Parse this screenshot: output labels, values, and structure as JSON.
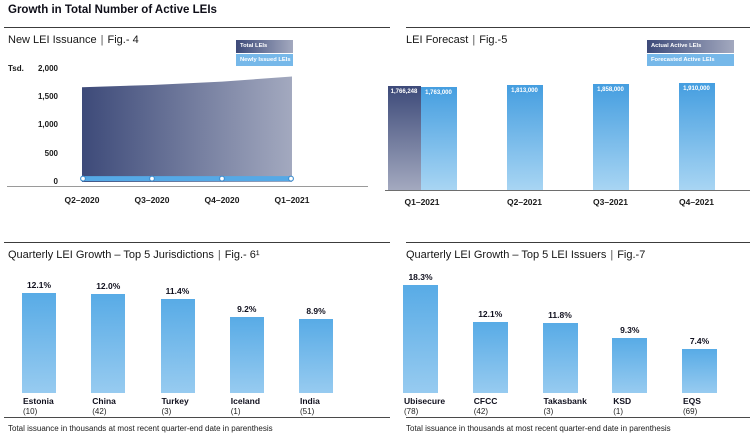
{
  "page_title": "Growth in Total Number of Active LEIs",
  "separator": "|",
  "colors": {
    "dark_gradient_start": "#3d4a79",
    "dark_gradient_end": "#a3a9bf",
    "light_blue_legend": "#76b8e9",
    "light_bar_top": "#459ee0",
    "light_bar_bottom": "#a8d5f3",
    "growth_bar_top": "#58abe6",
    "growth_bar_bottom": "#97cbf0",
    "line_blue": "#55a9e6",
    "marker_stroke": "#3f8fd0",
    "axis_gray": "#9a9a9a",
    "baseline_gray": "#6e6e6e",
    "text_dark": "#1a1a1a"
  },
  "chart_data": [
    {
      "id": "fig4",
      "title": "New LEI Issuance",
      "fig_label": "Fig.- 4",
      "type": "area",
      "legend": [
        {
          "label": "Total LEIs",
          "style": "dark"
        },
        {
          "label": "Newly Issued LEIs",
          "style": "light"
        }
      ],
      "y_axis": {
        "unit": "Tsd.",
        "ticks": [
          "2,000",
          "1,500",
          "1,000",
          "500",
          "0"
        ],
        "min": 0,
        "max": 2000
      },
      "categories": [
        "Q2–2020",
        "Q3–2020",
        "Q4–2020",
        "Q1–2021"
      ],
      "series": [
        {
          "name": "Total LEIs",
          "values": [
            1680,
            1720,
            1780,
            1870
          ]
        },
        {
          "name": "Newly Issued LEIs",
          "values": [
            60,
            60,
            60,
            60
          ]
        }
      ]
    },
    {
      "id": "fig5",
      "title": "LEI Forecast",
      "fig_label": "Fig.-5",
      "type": "bar",
      "legend": [
        {
          "label": "Actual Active LEIs",
          "style": "dark"
        },
        {
          "label": "Forecasted Active LEIs",
          "style": "light"
        }
      ],
      "categories": [
        "Q1–2021",
        "Q2–2021",
        "Q3–2021",
        "Q4–2021"
      ],
      "series": [
        {
          "name": "Actual Active LEIs",
          "values": [
            1766248,
            null,
            null,
            null
          ],
          "labels": [
            "1,766,248",
            null,
            null,
            null
          ]
        },
        {
          "name": "Forecasted Active LEIs",
          "values": [
            1763000,
            1813000,
            1858000,
            1910000
          ],
          "labels": [
            "1,763,000",
            "1,813,000",
            "1,858,000",
            "1,910,000"
          ]
        }
      ]
    },
    {
      "id": "fig6",
      "title": "Quarterly LEI Growth – Top 5 Jurisdictions",
      "fig_label": "Fig.- 6¹",
      "type": "bar",
      "categories": [
        "Estonia",
        "China",
        "Turkey",
        "Iceland",
        "India"
      ],
      "counts": [
        "(10)",
        "(42)",
        "(3)",
        "(1)",
        "(51)"
      ],
      "values": [
        12.1,
        12.0,
        11.4,
        9.2,
        8.9
      ],
      "labels": [
        "12.1%",
        "12.0%",
        "11.4%",
        "9.2%",
        "8.9%"
      ],
      "footnote": "Total issuance in thousands at most recent quarter-end date in parenthesis"
    },
    {
      "id": "fig7",
      "title": "Quarterly LEI Growth – Top 5 LEI Issuers",
      "fig_label": "Fig.-7",
      "type": "bar",
      "categories": [
        "Ubisecure",
        "CFCC",
        "Takasbank",
        "KSD",
        "EQS"
      ],
      "counts": [
        "(78)",
        "(42)",
        "(3)",
        "(1)",
        "(69)"
      ],
      "values": [
        18.3,
        12.1,
        11.8,
        9.3,
        7.4
      ],
      "labels": [
        "18.3%",
        "12.1%",
        "11.8%",
        "9.3%",
        "7.4%"
      ],
      "footnote": "Total issuance in thousands at most recent quarter-end date in parenthesis"
    }
  ]
}
